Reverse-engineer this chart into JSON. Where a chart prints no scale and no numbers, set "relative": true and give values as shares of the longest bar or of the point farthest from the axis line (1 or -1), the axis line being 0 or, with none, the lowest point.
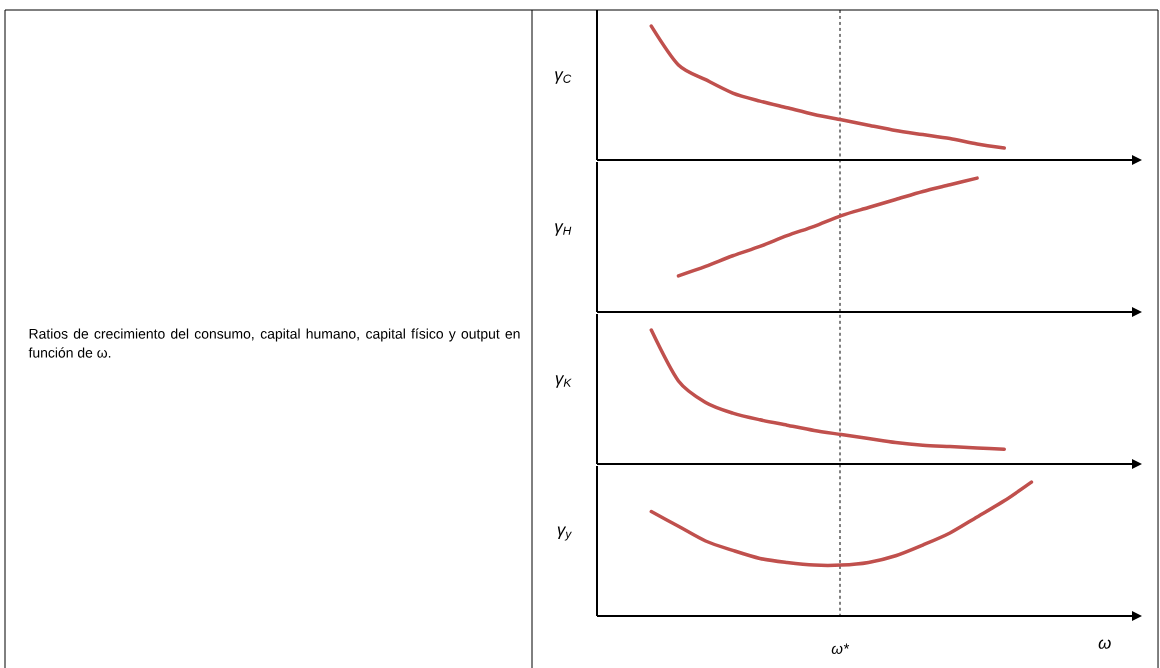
{
  "chart_data": [
    {
      "type": "other",
      "annotations": [
        "Ratios de crecimiento del consumo, capital humano, capital físico y output en función de ω."
      ]
    },
    {
      "type": "line",
      "ylabel": "γ$_{C}$",
      "relative": true,
      "color": "#c0504d",
      "categories": [
        null,
        null,
        null,
        null,
        null,
        null,
        null,
        null,
        null,
        null,
        null,
        null,
        null,
        null,
        null,
        null,
        null,
        null,
        null,
        null,
        null
      ],
      "values": [
        null,
        null,
        1.0,
        0.71,
        0.6,
        0.5,
        0.44,
        0.39,
        0.34,
        0.3,
        0.26,
        0.22,
        0.19,
        0.16,
        0.12,
        0.09,
        null,
        null,
        null,
        null,
        null
      ]
    },
    {
      "type": "line",
      "ylabel": "γ$_{H}$",
      "relative": true,
      "color": "#c0504d",
      "categories": [
        null,
        null,
        null,
        null,
        null,
        null,
        null,
        null,
        null,
        null,
        null,
        null,
        null,
        null,
        null,
        null,
        null,
        null,
        null,
        null,
        null
      ],
      "values": [
        null,
        null,
        null,
        0.27,
        0.34,
        0.42,
        0.49,
        0.57,
        0.64,
        0.72,
        0.78,
        0.84,
        0.9,
        0.95,
        1.0,
        null,
        null,
        null,
        null,
        null,
        null
      ]
    },
    {
      "type": "line",
      "ylabel": "γ$_{K}$",
      "relative": true,
      "color": "#c0504d",
      "categories": [
        null,
        null,
        null,
        null,
        null,
        null,
        null,
        null,
        null,
        null,
        null,
        null,
        null,
        null,
        null,
        null,
        null,
        null,
        null,
        null,
        null
      ],
      "values": [
        null,
        null,
        1.0,
        0.62,
        0.46,
        0.38,
        0.33,
        0.29,
        0.25,
        0.22,
        0.19,
        0.16,
        0.14,
        0.13,
        0.12,
        0.11,
        null,
        null,
        null,
        null,
        null
      ]
    },
    {
      "type": "line",
      "ylabel": "γ$_{y}$",
      "xlabel": "ω",
      "relative": true,
      "color": "#c0504d",
      "annotations": [
        "ω*"
      ],
      "categories": [
        null,
        null,
        null,
        null,
        null,
        null,
        null,
        null,
        null,
        null,
        null,
        null,
        null,
        null,
        null,
        null,
        null,
        null,
        null,
        null,
        null
      ],
      "values": [
        null,
        null,
        0.78,
        0.67,
        0.56,
        0.49,
        0.43,
        0.4,
        0.38,
        0.38,
        0.4,
        0.45,
        0.53,
        0.62,
        0.74,
        0.86,
        1.0,
        null,
        null,
        null,
        null
      ]
    }
  ]
}
